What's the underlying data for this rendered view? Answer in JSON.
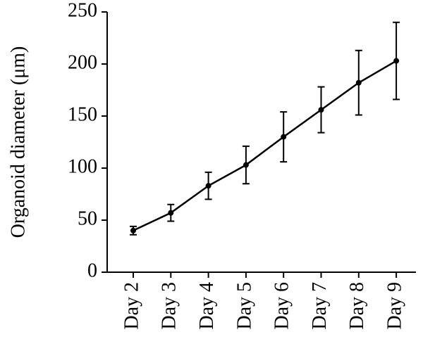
{
  "chart_data": {
    "type": "line",
    "ylabel": "Organoid diameter (μm)",
    "categories": [
      "Day 2",
      "Day 3",
      "Day 4",
      "Day 5",
      "Day 6",
      "Day 7",
      "Day 8",
      "Day 9"
    ],
    "values": [
      40,
      57,
      83,
      103,
      130,
      156,
      182,
      203
    ],
    "errors": [
      4,
      8,
      13,
      18,
      24,
      22,
      31,
      37
    ],
    "color": "#000000",
    "ylim": [
      0,
      250
    ],
    "yticks": [
      0,
      50,
      100,
      150,
      200,
      250
    ]
  }
}
